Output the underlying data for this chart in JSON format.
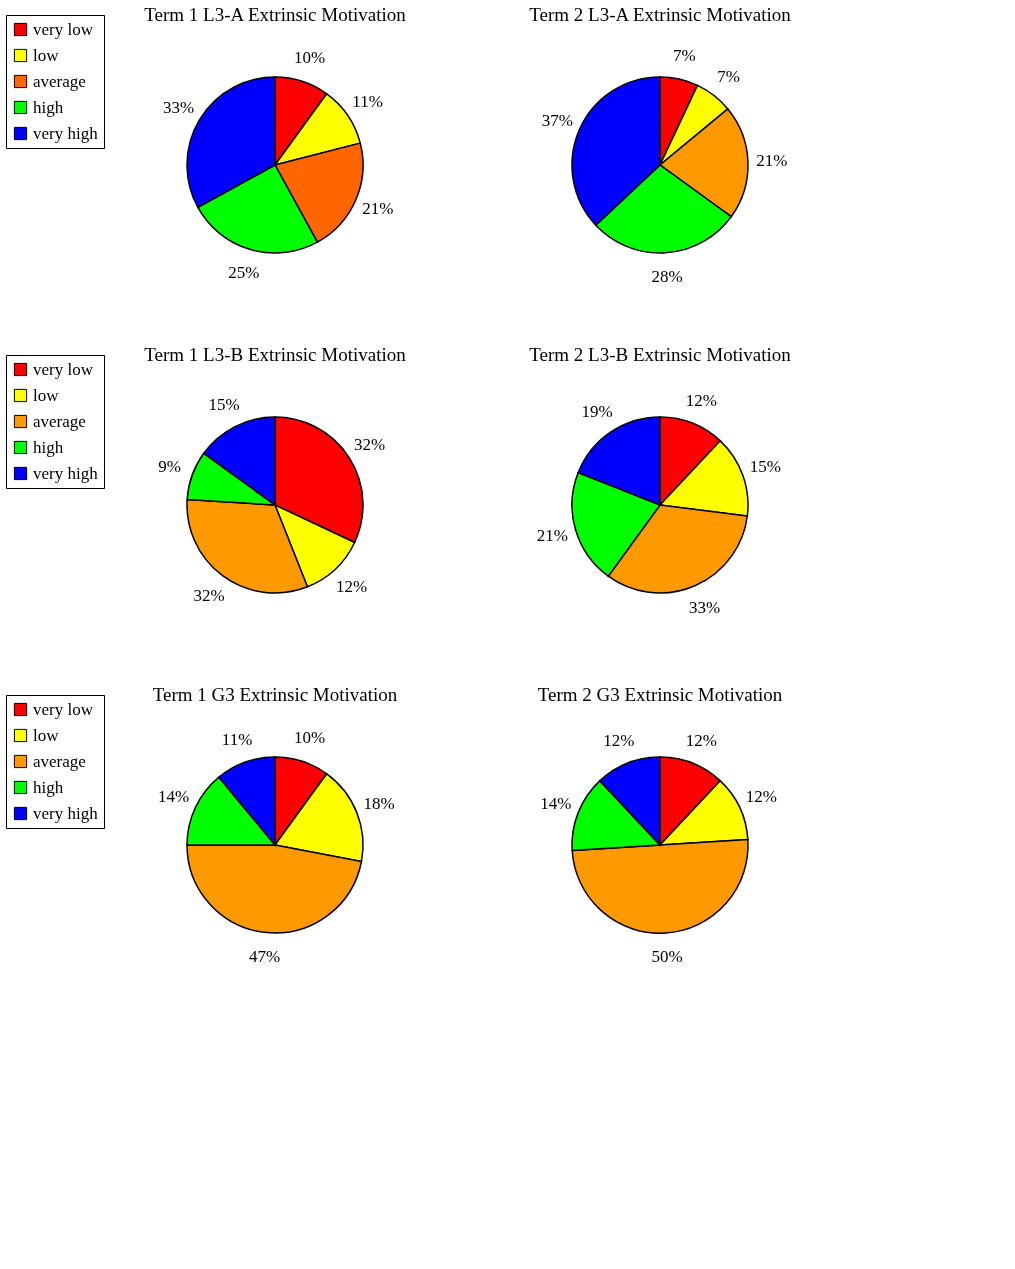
{
  "chart_data": [
    {
      "type": "pie",
      "title": "Term 1 L3-A Extrinsic Motivation",
      "categories": [
        "very low",
        "low",
        "average",
        "high",
        "very high"
      ],
      "values": [
        10,
        11,
        21,
        25,
        33
      ],
      "colors": [
        "#ff0000",
        "#ffff00",
        "#ff6600",
        "#00ff00",
        "#0000ff"
      ],
      "value_labels": [
        "10%",
        "11%",
        "21%",
        "25%",
        "33%"
      ],
      "legend": "left"
    },
    {
      "type": "pie",
      "title": "Term 2 L3-A Extrinsic Motivation",
      "categories": [
        null,
        null,
        null,
        null,
        null
      ],
      "values": [
        7,
        7,
        21,
        28,
        37
      ],
      "colors": [
        "#ff0000",
        "#ffff00",
        "#ff9900",
        "#00ff00",
        "#0000ff"
      ],
      "value_labels": [
        "7%",
        "7%",
        "21%",
        "28%",
        "37%"
      ]
    },
    {
      "type": "pie",
      "title": "Term 1 L3-B Extrinsic Motivation",
      "categories": [
        "very low",
        "low",
        "average",
        "high",
        "very high"
      ],
      "values": [
        32,
        12,
        32,
        9,
        15
      ],
      "colors": [
        "#ff0000",
        "#ffff00",
        "#ff9900",
        "#00ff00",
        "#0000ff"
      ],
      "value_labels": [
        "32%",
        "12%",
        "32%",
        "9%",
        "15%"
      ],
      "legend": "left"
    },
    {
      "type": "pie",
      "title": "Term 2 L3-B Extrinsic Motivation",
      "categories": [
        null,
        null,
        null,
        null,
        null
      ],
      "values": [
        12,
        15,
        33,
        21,
        19
      ],
      "colors": [
        "#ff0000",
        "#ffff00",
        "#ff9900",
        "#00ff00",
        "#0000ff"
      ],
      "value_labels": [
        "12%",
        "15%",
        "33%",
        "21%",
        "19%"
      ]
    },
    {
      "type": "pie",
      "title": "Term 1 G3 Extrinsic Motivation",
      "categories": [
        "very low",
        "low",
        "average",
        "high",
        "very high"
      ],
      "values": [
        10,
        18,
        47,
        14,
        11
      ],
      "colors": [
        "#ff0000",
        "#ffff00",
        "#ff9900",
        "#00ff00",
        "#0000ff"
      ],
      "value_labels": [
        "10%",
        "18%",
        "47%",
        "14%",
        "11%"
      ],
      "legend": "left"
    },
    {
      "type": "pie",
      "title": "Term 2 G3 Extrinsic Motivation",
      "categories": [
        null,
        null,
        null,
        null,
        null
      ],
      "values": [
        12,
        12,
        50,
        14,
        12
      ],
      "colors": [
        "#ff0000",
        "#ffff00",
        "#ff9900",
        "#00ff00",
        "#0000ff"
      ],
      "value_labels": [
        "12%",
        "12%",
        "50%",
        "14%",
        "12%"
      ]
    }
  ]
}
